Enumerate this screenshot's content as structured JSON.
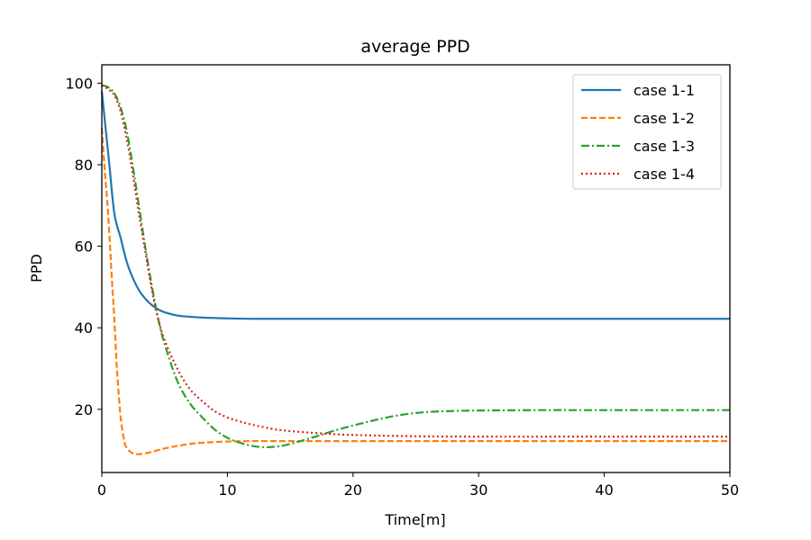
{
  "chart_data": {
    "type": "line",
    "title": "average PPD",
    "xlabel": "Time[m]",
    "ylabel": "PPD",
    "xlim": [
      0,
      50
    ],
    "ylim": [
      4.5,
      104.5
    ],
    "xticks": [
      0,
      10,
      20,
      30,
      40,
      50
    ],
    "yticks": [
      20,
      40,
      60,
      80,
      100
    ],
    "grid": false,
    "legend_position": "top-right",
    "series": [
      {
        "name": "case 1-1",
        "color": "#1f77b4",
        "dash": "solid",
        "x": [
          0,
          0.3,
          0.6,
          1,
          1.5,
          2,
          2.5,
          3,
          3.5,
          4,
          4.5,
          5,
          6,
          7,
          8,
          9,
          10,
          12,
          15,
          20,
          30,
          40,
          50
        ],
        "y": [
          98,
          89,
          80,
          68,
          62,
          56,
          52,
          49,
          47,
          45.5,
          44.5,
          43.8,
          43,
          42.7,
          42.5,
          42.4,
          42.3,
          42.2,
          42.2,
          42.2,
          42.2,
          42.2,
          42.2
        ]
      },
      {
        "name": "case 1-2",
        "color": "#ff7f0e",
        "dash": "dashed",
        "x": [
          0,
          0.2,
          0.5,
          0.8,
          1.0,
          1.2,
          1.5,
          1.8,
          2.0,
          2.3,
          2.6,
          3.0,
          3.5,
          4,
          5,
          6,
          7,
          8,
          10,
          12,
          15,
          20,
          30,
          40,
          50
        ],
        "y": [
          89,
          80,
          68,
          52,
          42,
          30,
          18,
          12,
          10.5,
          9.5,
          9.1,
          9.0,
          9.2,
          9.6,
          10.4,
          11.0,
          11.5,
          11.8,
          12.1,
          12.2,
          12.2,
          12.2,
          12.2,
          12.2,
          12.2
        ]
      },
      {
        "name": "case 1-3",
        "color": "#2ca02c",
        "dash": "dashdot",
        "x": [
          0,
          0.5,
          1,
          1.5,
          2,
          2.5,
          3,
          3.5,
          4,
          4.5,
          5,
          6,
          7,
          8,
          9,
          10,
          11,
          12,
          13,
          14,
          15,
          17,
          19,
          21,
          23,
          25,
          27,
          30,
          35,
          40,
          50
        ],
        "y": [
          99.5,
          99,
          97.5,
          94,
          88,
          79,
          69,
          59,
          50,
          42,
          36,
          27,
          21.5,
          18,
          15,
          13,
          11.8,
          11,
          10.7,
          10.9,
          11.5,
          13.3,
          15.2,
          16.8,
          18.2,
          19.1,
          19.5,
          19.7,
          19.8,
          19.8,
          19.8
        ]
      },
      {
        "name": "case 1-4",
        "color": "#d62728",
        "dash": "dotted",
        "x": [
          0,
          0.5,
          1,
          1.5,
          2,
          2.5,
          3,
          3.5,
          4,
          4.5,
          5,
          6,
          7,
          8,
          9,
          10,
          11,
          12,
          14,
          16,
          18,
          20,
          25,
          30,
          40,
          50
        ],
        "y": [
          99.5,
          98.5,
          97,
          93,
          86,
          77,
          67,
          58,
          49,
          42,
          37,
          30,
          25,
          22,
          19.5,
          18,
          17,
          16.2,
          15,
          14.4,
          14,
          13.7,
          13.4,
          13.3,
          13.3,
          13.3
        ]
      }
    ]
  }
}
